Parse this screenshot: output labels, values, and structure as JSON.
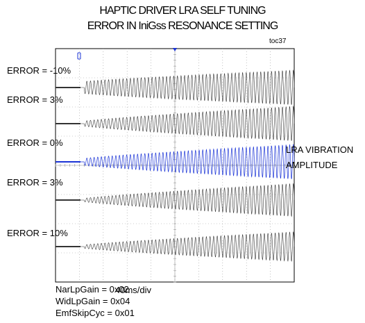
{
  "title_line1": "HAPTIC DRIVER LRA SELF TUNING",
  "title_line2": "ERROR IN IniGss RESONANCE SETTING",
  "figure_ref": "toc37",
  "timebase": "40ms/div",
  "settings": [
    "NarLpGain = 0x02",
    "WidLpGain = 0x04",
    "EmfSkipCyc = 0x01"
  ],
  "annotation": [
    "LRA VIBRATION",
    "AMPLITUDE"
  ],
  "colors": {
    "trace": "#333333",
    "highlight": "#1a33d6",
    "grid": "#9a9a9a",
    "frame": "#000000"
  },
  "chart_data": {
    "type": "line",
    "xlabel": "",
    "ylabel": "",
    "grid": true,
    "series": [
      {
        "name": "ERROR = -10%",
        "start_fraction": 0.12,
        "initial_amplitude": 0.35,
        "final_amplitude": 1.0,
        "highlighted": false
      },
      {
        "name": "ERROR = 3%",
        "start_fraction": 0.12,
        "initial_amplitude": 0.15,
        "final_amplitude": 1.0,
        "highlighted": false
      },
      {
        "name": "ERROR = 0%",
        "start_fraction": 0.12,
        "initial_amplitude": 0.2,
        "final_amplitude": 1.0,
        "highlighted": true
      },
      {
        "name": "ERROR = 3%",
        "start_fraction": 0.12,
        "initial_amplitude": 0.1,
        "final_amplitude": 0.95,
        "highlighted": false
      },
      {
        "name": "ERROR = 10%",
        "start_fraction": 0.12,
        "initial_amplitude": 0.1,
        "final_amplitude": 0.85,
        "highlighted": false
      }
    ]
  }
}
